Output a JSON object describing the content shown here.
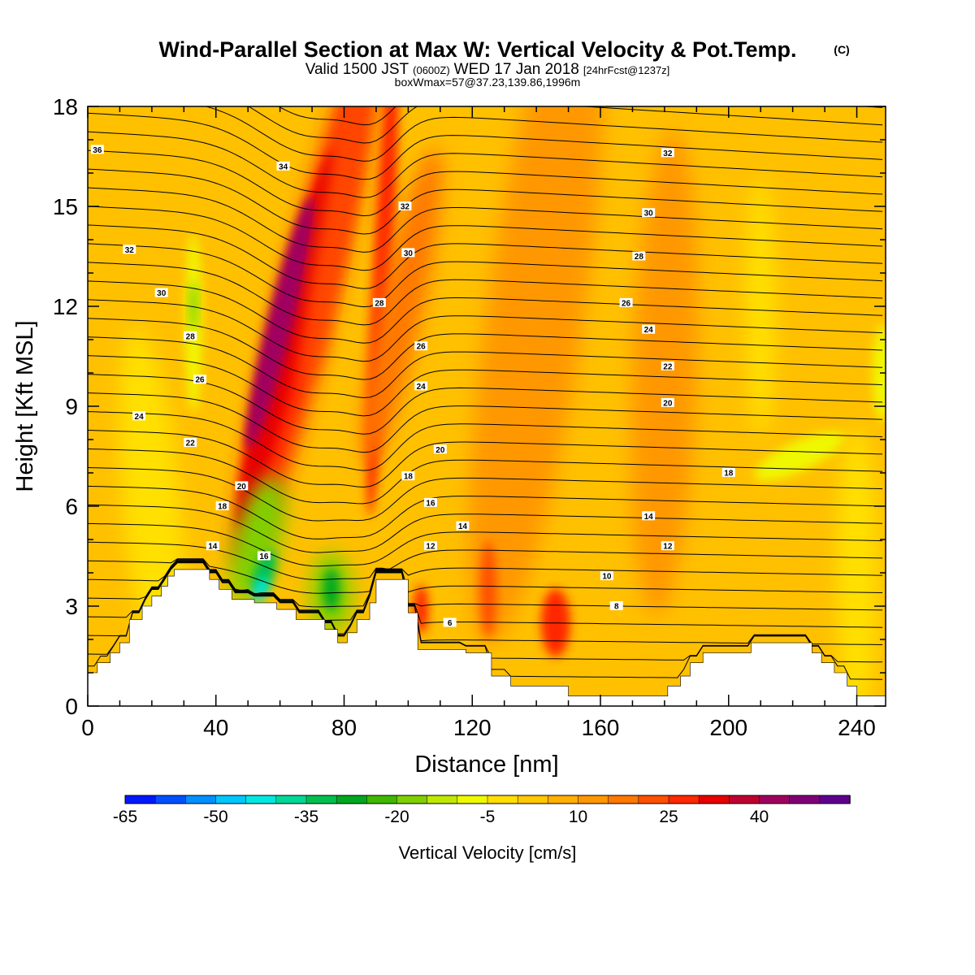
{
  "title": {
    "main": "Wind-Parallel Section at Max W: Vertical Velocity & Pot.Temp.",
    "copyright": "(C)",
    "valid_prefix": "Valid 1500 JST",
    "valid_z": "(0600Z)",
    "valid_date": "WED 17 Jan 2018",
    "valid_fcst": "[24hrFcst@1237z]",
    "box": "boxWmax=57@37.23,139.86,1996m"
  },
  "chart_data": {
    "type": "heatmap",
    "xlabel": "Distance [nm]",
    "ylabel": "Height [Kft MSL]",
    "xlim": [
      0,
      249
    ],
    "ylim": [
      0,
      18
    ],
    "x_ticks": [
      0,
      40,
      80,
      120,
      160,
      200,
      240
    ],
    "y_ticks": [
      0,
      3,
      6,
      9,
      12,
      15,
      18
    ],
    "colorbar": {
      "label": "Vertical Velocity [cm/s]",
      "ticks": [
        -65,
        -50,
        -35,
        -20,
        -5,
        10,
        25,
        40
      ],
      "colors": [
        "#0018ff",
        "#0050ff",
        "#0090ff",
        "#00c8ff",
        "#00e8e0",
        "#00d898",
        "#00c050",
        "#00a820",
        "#40b800",
        "#80d000",
        "#c0e800",
        "#f0f800",
        "#ffe000",
        "#ffc800",
        "#ffb000",
        "#ff9800",
        "#ff7800",
        "#ff5000",
        "#ff2800",
        "#e80000",
        "#c00030",
        "#a00060",
        "#800078",
        "#600090"
      ]
    },
    "terrain_kft": [
      [
        0,
        1.0
      ],
      [
        3,
        1.0
      ],
      [
        3,
        1.3
      ],
      [
        7,
        1.3
      ],
      [
        7,
        1.6
      ],
      [
        10,
        1.6
      ],
      [
        10,
        1.9
      ],
      [
        13,
        1.9
      ],
      [
        13,
        2.6
      ],
      [
        17,
        2.6
      ],
      [
        17,
        3.0
      ],
      [
        20,
        3.0
      ],
      [
        20,
        3.3
      ],
      [
        23,
        3.3
      ],
      [
        23,
        3.6
      ],
      [
        25,
        3.6
      ],
      [
        25,
        3.9
      ],
      [
        27,
        3.9
      ],
      [
        27,
        4.1
      ],
      [
        38,
        4.1
      ],
      [
        38,
        3.8
      ],
      [
        41,
        3.8
      ],
      [
        41,
        3.5
      ],
      [
        45,
        3.5
      ],
      [
        45,
        3.2
      ],
      [
        52,
        3.2
      ],
      [
        52,
        3.1
      ],
      [
        59,
        3.1
      ],
      [
        59,
        2.9
      ],
      [
        65,
        2.9
      ],
      [
        65,
        2.6
      ],
      [
        74,
        2.6
      ],
      [
        74,
        2.3
      ],
      [
        78,
        2.3
      ],
      [
        78,
        1.9
      ],
      [
        81,
        1.9
      ],
      [
        81,
        2.2
      ],
      [
        84,
        2.2
      ],
      [
        84,
        2.6
      ],
      [
        88,
        2.6
      ],
      [
        88,
        3.1
      ],
      [
        90,
        3.1
      ],
      [
        90,
        3.8
      ],
      [
        100,
        3.8
      ],
      [
        100,
        2.8
      ],
      [
        103,
        2.8
      ],
      [
        103,
        1.7
      ],
      [
        118,
        1.7
      ],
      [
        118,
        1.6
      ],
      [
        126,
        1.6
      ],
      [
        126,
        0.9
      ],
      [
        132,
        0.9
      ],
      [
        132,
        0.6
      ],
      [
        150,
        0.6
      ],
      [
        150,
        0.3
      ],
      [
        181,
        0.3
      ],
      [
        181,
        0.6
      ],
      [
        185,
        0.6
      ],
      [
        185,
        0.9
      ],
      [
        188,
        0.9
      ],
      [
        188,
        1.3
      ],
      [
        192,
        1.3
      ],
      [
        192,
        1.6
      ],
      [
        207,
        1.6
      ],
      [
        207,
        1.9
      ],
      [
        226,
        1.9
      ],
      [
        226,
        1.6
      ],
      [
        229,
        1.6
      ],
      [
        229,
        1.3
      ],
      [
        233,
        1.3
      ],
      [
        233,
        1.0
      ],
      [
        237,
        1.0
      ],
      [
        237,
        0.6
      ],
      [
        240,
        0.6
      ],
      [
        240,
        0.3
      ],
      [
        249,
        0.3
      ]
    ],
    "theta_contours": [
      {
        "level": 8,
        "label_at": [
          165,
          3.0
        ]
      },
      {
        "level": 6,
        "label_at": [
          113,
          2.5
        ]
      },
      {
        "level": 10,
        "label_at": [
          162,
          3.9
        ]
      },
      {
        "level": 12,
        "label_at": [
          107,
          4.8
        ],
        "label2_at": [
          181,
          4.8
        ]
      },
      {
        "level": 14,
        "label_at": [
          39,
          4.8
        ],
        "label2_at": [
          117,
          5.4
        ],
        "label3_at": [
          175,
          5.7
        ]
      },
      {
        "level": 16,
        "label_at": [
          55,
          4.5
        ],
        "label2_at": [
          107,
          6.1
        ]
      },
      {
        "level": 18,
        "label_at": [
          42,
          6.0
        ],
        "label2_at": [
          100,
          6.9
        ],
        "label3_at": [
          200,
          7.0
        ]
      },
      {
        "level": 20,
        "label_at": [
          48,
          6.6
        ],
        "label2_at": [
          110,
          7.7
        ],
        "label3_at": [
          181,
          9.1
        ]
      },
      {
        "level": 22,
        "label_at": [
          32,
          7.9
        ],
        "label2_at": [
          181,
          10.2
        ]
      },
      {
        "level": 24,
        "label_at": [
          16,
          8.7
        ],
        "label2_at": [
          104,
          9.6
        ],
        "label3_at": [
          175,
          11.3
        ]
      },
      {
        "level": 26,
        "label_at": [
          35,
          9.8
        ],
        "label2_at": [
          104,
          10.8
        ],
        "label3_at": [
          168,
          12.1
        ]
      },
      {
        "level": 28,
        "label_at": [
          32,
          11.1
        ],
        "label2_at": [
          91,
          12.1
        ],
        "label3_at": [
          172,
          13.5
        ]
      },
      {
        "level": 30,
        "label_at": [
          23,
          12.4
        ],
        "label2_at": [
          100,
          13.6
        ],
        "label3_at": [
          175,
          14.8
        ]
      },
      {
        "level": 32,
        "label_at": [
          13,
          13.7
        ],
        "label2_at": [
          99,
          15.0
        ],
        "label3_at": [
          181,
          16.6
        ]
      },
      {
        "level": 34,
        "label_at": [
          61,
          16.2
        ]
      },
      {
        "level": 36,
        "label_at": [
          3,
          16.7
        ]
      }
    ],
    "velocity_features": [
      {
        "kind": "updraft",
        "value": 40,
        "x": 60,
        "y": 11.5
      },
      {
        "kind": "updraft",
        "value": 25,
        "x": 92,
        "y": 14.5
      },
      {
        "kind": "updraft",
        "value": 25,
        "x": 146,
        "y": 2.5
      },
      {
        "kind": "updraft",
        "value": 25,
        "x": 104,
        "y": 2.8
      },
      {
        "kind": "downdraft",
        "value": -35,
        "x": 55,
        "y": 4.0
      },
      {
        "kind": "downdraft",
        "value": -25,
        "x": 76,
        "y": 3.5
      },
      {
        "kind": "downdraft",
        "value": -15,
        "x": 33,
        "y": 12.0
      },
      {
        "kind": "downdraft",
        "value": -10,
        "x": 222,
        "y": 7.5
      }
    ]
  }
}
